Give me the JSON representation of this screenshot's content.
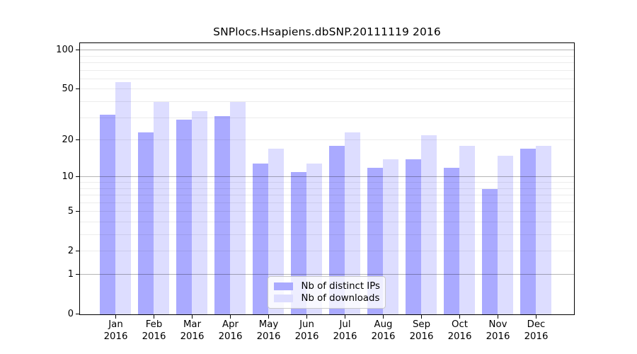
{
  "title": "SNPlocs.Hsapiens.dbSNP.20111119 2016",
  "chart_data": {
    "type": "bar",
    "title": "SNPlocs.Hsapiens.dbSNP.20111119 2016",
    "y_scale": "log1p",
    "ylim": [
      0,
      112
    ],
    "y_ticks": [
      100,
      50,
      20,
      10,
      5,
      2,
      1,
      0
    ],
    "grid": {
      "decade_lines": [
        1,
        10,
        100
      ],
      "minor_lines": [
        2,
        3,
        4,
        5,
        6,
        7,
        8,
        9,
        20,
        30,
        40,
        50,
        60,
        70,
        80,
        90
      ]
    },
    "categories": [
      "Jan 2016",
      "Feb 2016",
      "Mar 2016",
      "Apr 2016",
      "May 2016",
      "Jun 2016",
      "Jul 2016",
      "Aug 2016",
      "Sep 2016",
      "Oct 2016",
      "Nov 2016",
      "Dec 2016"
    ],
    "series": [
      {
        "name": "Nb of distinct IPs",
        "color": "#aaaaff",
        "values": [
          32,
          23,
          29,
          31,
          13,
          11,
          18,
          12,
          14,
          12,
          8,
          17
        ]
      },
      {
        "name": "Nb of downloads",
        "color": "#ddddff",
        "values": [
          57,
          40,
          34,
          40,
          17,
          13,
          23,
          14,
          22,
          18,
          15,
          18
        ]
      }
    ],
    "legend": {
      "position": "bottom-center",
      "labels": [
        "Nb of distinct IPs",
        "Nb of downloads"
      ]
    }
  }
}
